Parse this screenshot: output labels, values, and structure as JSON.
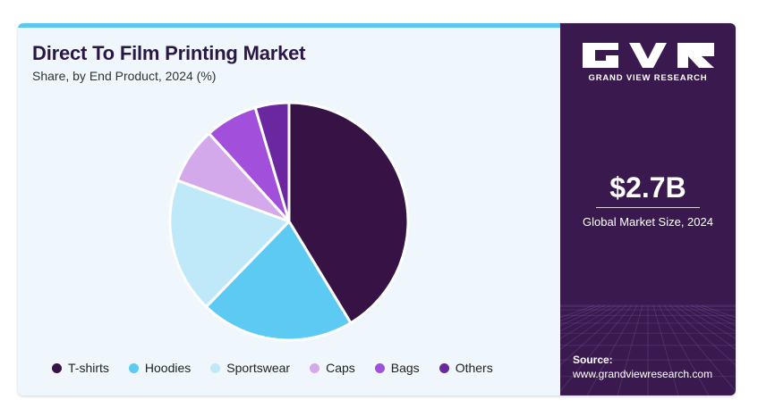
{
  "chart_data": {
    "type": "pie",
    "title": "Direct To Film Printing Market",
    "subtitle": "Share, by End Product, 2024 (%)",
    "categories": [
      "T-shirts",
      "Hoodies",
      "Sportswear",
      "Caps",
      "Bags",
      "Others"
    ],
    "values": [
      40.5,
      20.5,
      18.0,
      7.5,
      7.0,
      4.5
    ],
    "colors": [
      "#361245",
      "#5dcaf4",
      "#bfe8f9",
      "#d4a9ec",
      "#a24fdb",
      "#6b27a0"
    ],
    "start_angle_deg": 0,
    "direction": "clockwise",
    "legend": "bottom"
  },
  "sidebar": {
    "brand": "GRAND VIEW RESEARCH",
    "market_size": "$2.7B",
    "market_label": "Global Market Size, 2024",
    "source_label": "Source:",
    "source_url": "www.grandviewresearch.com"
  },
  "colors": {
    "panel_bg": "#eff7fc",
    "accent": "#5cc8f2",
    "sidebar_bg": "#3a1a4e",
    "title": "#2a1745"
  }
}
